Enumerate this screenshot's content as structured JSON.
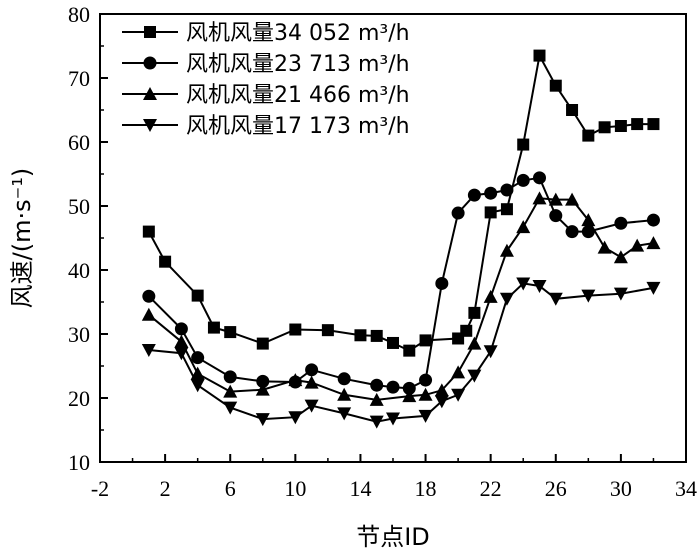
{
  "chart_data": {
    "type": "line",
    "xlabel": "节点ID",
    "ylabel": "风速/(m·s⁻¹)",
    "xlim": [
      -2,
      34
    ],
    "ylim": [
      10,
      80
    ],
    "xticks": [
      -2,
      2,
      6,
      10,
      14,
      18,
      22,
      26,
      30,
      34
    ],
    "yticks": [
      10,
      20,
      30,
      40,
      50,
      60,
      70,
      80
    ],
    "grid": false,
    "legend_position": "top-left",
    "series": [
      {
        "name": "风机风量34 052 m³/h",
        "marker": "square",
        "x": [
          1,
          2,
          4,
          5,
          6,
          8,
          10,
          12,
          14,
          15,
          16,
          17,
          18,
          20,
          20.5,
          21,
          22,
          23,
          24,
          25,
          26,
          27,
          28,
          29,
          30,
          31,
          32
        ],
        "y": [
          46,
          41.3,
          36,
          31,
          30.3,
          28.5,
          30.7,
          30.6,
          29.8,
          29.7,
          28.6,
          27.4,
          29,
          29.3,
          30.5,
          33.3,
          49,
          49.5,
          59.6,
          73.5,
          68.8,
          65,
          61,
          62.3,
          62.5,
          62.8,
          62.8
        ]
      },
      {
        "name": "风机风量23 713 m³/h",
        "marker": "circle",
        "x": [
          1,
          3,
          4,
          6,
          8,
          10,
          11,
          13,
          15,
          16,
          17,
          18,
          19,
          20,
          21,
          22,
          23,
          24,
          25,
          26,
          27,
          28,
          30,
          32
        ],
        "y": [
          35.9,
          30.8,
          26.3,
          23.3,
          22.6,
          22.5,
          24.4,
          23,
          22,
          21.7,
          21.5,
          22.8,
          37.9,
          48.9,
          51.7,
          52,
          52.5,
          54,
          54.4,
          48.5,
          46,
          46,
          47.3,
          47.8
        ]
      },
      {
        "name": "风机风量21 466 m³/h",
        "marker": "triangle-up",
        "x": [
          1,
          3,
          4,
          6,
          8,
          10,
          11,
          13,
          15,
          17,
          18,
          19,
          20,
          21,
          22,
          23,
          24,
          25,
          26,
          27,
          28,
          29,
          30,
          31,
          32
        ],
        "y": [
          33,
          28.8,
          23.8,
          21,
          21.3,
          22.8,
          22.4,
          20.5,
          19.7,
          20.3,
          20.5,
          21.2,
          24,
          28.5,
          35.8,
          43,
          46.7,
          51.2,
          51,
          51,
          47.8,
          43.5,
          42,
          43.8,
          44.2
        ]
      },
      {
        "name": "风机风量17 173 m³/h",
        "marker": "triangle-down",
        "x": [
          1,
          3,
          4,
          6,
          8,
          10,
          11,
          13,
          15,
          16,
          18,
          19,
          20,
          21,
          22,
          23,
          24,
          25,
          26,
          28,
          30,
          32
        ],
        "y": [
          27.5,
          27,
          22,
          18.5,
          16.7,
          17,
          18.8,
          17.6,
          16.3,
          16.8,
          17.2,
          19.5,
          20.5,
          23.5,
          27.3,
          35.5,
          37.9,
          37.5,
          35.5,
          36,
          36.3,
          37.2
        ]
      }
    ]
  }
}
